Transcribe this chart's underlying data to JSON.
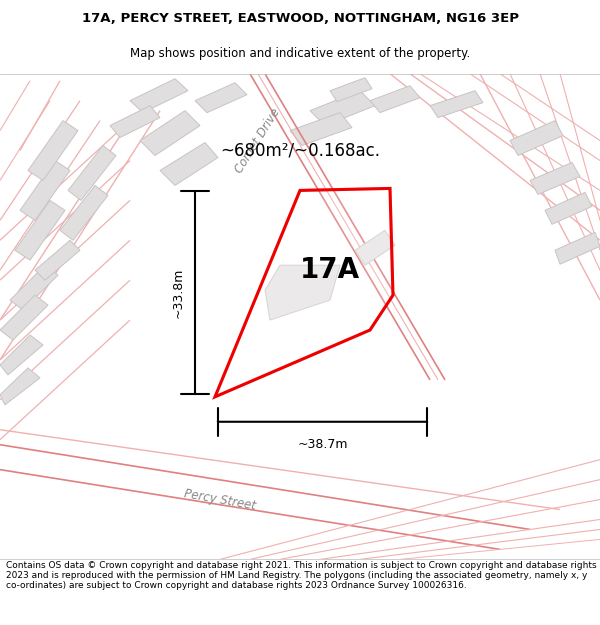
{
  "title_line1": "17A, PERCY STREET, EASTWOOD, NOTTINGHAM, NG16 3EP",
  "title_line2": "Map shows position and indicative extent of the property.",
  "footer_text": "Contains OS data © Crown copyright and database right 2021. This information is subject to Crown copyright and database rights 2023 and is reproduced with the permission of HM Land Registry. The polygons (including the associated geometry, namely x, y co-ordinates) are subject to Crown copyright and database rights 2023 Ordnance Survey 100026316.",
  "area_label": "~680m²/~0.168ac.",
  "property_label": "17A",
  "dim_width": "~38.7m",
  "dim_height": "~33.8m",
  "plot_edge_color": "#ee0000",
  "road_label_comet": "Comet Drive",
  "road_label_percy": "Percy Street",
  "map_bg": "#f7f5f5",
  "building_fc": "#e0dede",
  "building_ec": "#c8c4c4",
  "road_line_color": "#f0b0b0",
  "road_line_color2": "#e08080"
}
